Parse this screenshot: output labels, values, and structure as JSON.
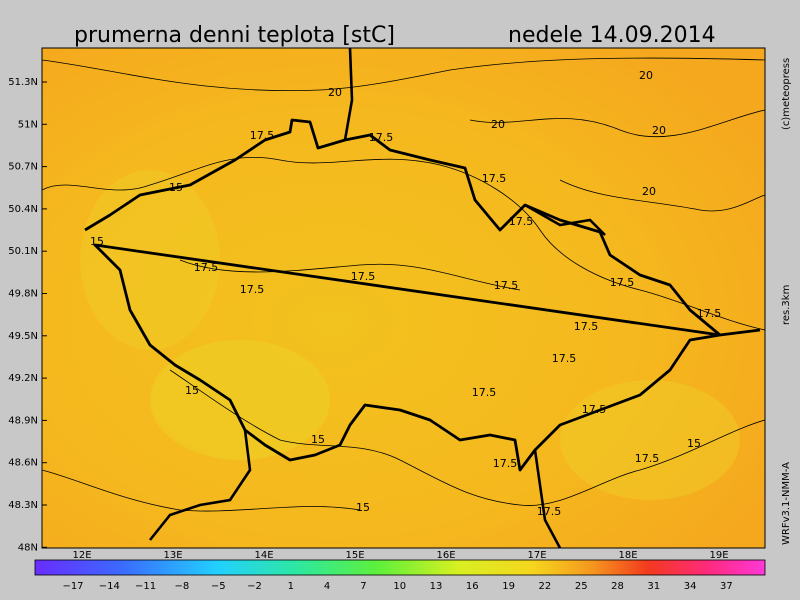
{
  "header": {
    "title": "prumerna denni teplota [stC]",
    "date": "nedele 14.09.2014"
  },
  "side": {
    "copyright": "(c)meteopress",
    "resolution": "res.3km",
    "model": "WRFv3.1-NMM-A"
  },
  "lat_labels": [
    "51.3N",
    "51N",
    "50.7N",
    "50.4N",
    "50.1N",
    "49.8N",
    "49.5N",
    "49.2N",
    "48.9N",
    "48.6N",
    "48.3N",
    "48N"
  ],
  "lon_labels": [
    "12E",
    "13E",
    "14E",
    "15E",
    "16E",
    "17E",
    "18E",
    "19E"
  ],
  "colorbar_labels": [
    "−17",
    "−14",
    "−11",
    "−8",
    "−5",
    "−2",
    "1",
    "4",
    "7",
    "10",
    "13",
    "16",
    "19",
    "22",
    "25",
    "28",
    "31",
    "34",
    "37"
  ],
  "contour_labels": [
    "20",
    "20",
    "20",
    "20",
    "20",
    "17.5",
    "17.5",
    "17.5",
    "17.5",
    "15",
    "15",
    "17.5",
    "17.5",
    "17.5",
    "17.5",
    "17.5",
    "17.5",
    "17.5",
    "17.5",
    "17.5",
    "17.5",
    "15",
    "15",
    "15",
    "17.5",
    "17.5",
    "15",
    "17.5"
  ]
}
